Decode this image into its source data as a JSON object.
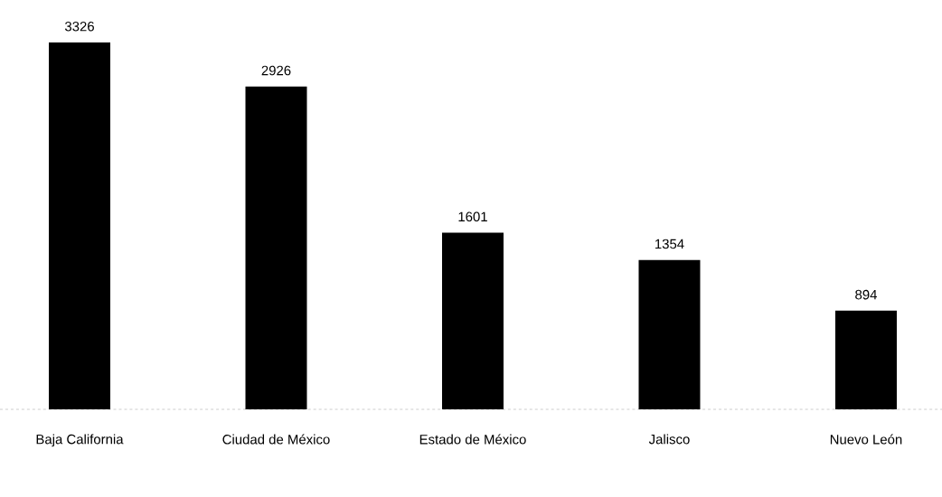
{
  "chart_data": {
    "type": "bar",
    "categories": [
      "Baja California",
      "Ciudad de México",
      "Estado de México",
      "Jalisco",
      "Nuevo León"
    ],
    "values": [
      3326,
      2926,
      1601,
      1354,
      894
    ],
    "color": "#000000",
    "data_labels": true
  }
}
